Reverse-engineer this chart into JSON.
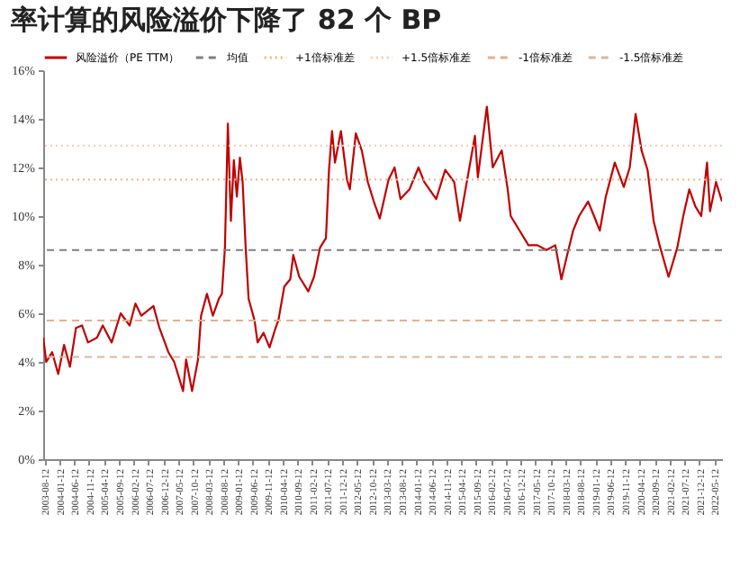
{
  "chart_data": {
    "type": "line",
    "title": "率计算的风险溢价下降了 82 个 BP",
    "x": [
      "2003-08",
      "2003-09",
      "2003-11",
      "2004-01",
      "2004-03",
      "2004-05",
      "2004-07",
      "2004-09",
      "2004-11",
      "2005-02",
      "2005-04",
      "2005-07",
      "2005-10",
      "2006-01",
      "2006-03",
      "2006-05",
      "2006-09",
      "2006-11",
      "2007-02",
      "2007-04",
      "2007-07",
      "2007-08",
      "2007-10",
      "2007-12",
      "2008-01",
      "2008-03",
      "2008-05",
      "2008-07",
      "2008-08",
      "2008-09",
      "2008-10",
      "2008-11",
      "2008-12",
      "2009-01",
      "2009-02",
      "2009-03",
      "2009-04",
      "2009-05",
      "2009-07",
      "2009-08",
      "2009-10",
      "2009-12",
      "2010-02",
      "2010-03",
      "2010-05",
      "2010-07",
      "2010-08",
      "2010-10",
      "2011-01",
      "2011-03",
      "2011-05",
      "2011-07",
      "2011-08",
      "2011-09",
      "2011-10",
      "2011-12",
      "2012-02",
      "2012-03",
      "2012-05",
      "2012-07",
      "2012-09",
      "2012-11",
      "2013-01",
      "2013-04",
      "2013-06",
      "2013-08",
      "2013-11",
      "2014-02",
      "2014-04",
      "2014-08",
      "2014-11",
      "2015-02",
      "2015-04",
      "2015-06",
      "2015-09",
      "2015-10",
      "2016-01",
      "2016-03",
      "2016-06",
      "2016-08",
      "2016-09",
      "2016-12",
      "2017-03",
      "2017-06",
      "2017-09",
      "2017-12",
      "2018-02",
      "2018-04",
      "2018-06",
      "2018-08",
      "2018-11",
      "2019-01",
      "2019-03",
      "2019-05",
      "2019-08",
      "2019-11",
      "2020-01",
      "2020-03",
      "2020-05",
      "2020-07",
      "2020-09",
      "2020-11",
      "2021-02",
      "2021-05",
      "2021-07",
      "2021-09",
      "2021-11",
      "2022-01",
      "2022-03",
      "2022-04",
      "2022-06",
      "2022-08"
    ],
    "series": [
      {
        "name": "风险溢价（PE TTM）",
        "color": "#c00000",
        "line_style": "solid",
        "values": [
          5.0,
          4.0,
          4.4,
          3.5,
          4.7,
          3.8,
          5.4,
          5.5,
          4.8,
          5.0,
          5.5,
          4.8,
          6.0,
          5.5,
          6.4,
          5.9,
          6.3,
          5.4,
          4.4,
          4.0,
          2.8,
          4.1,
          2.8,
          4.1,
          5.9,
          6.8,
          5.9,
          6.6,
          6.8,
          8.7,
          13.8,
          9.8,
          12.3,
          10.8,
          12.4,
          11.4,
          8.7,
          6.6,
          5.7,
          4.8,
          5.2,
          4.6,
          5.4,
          5.7,
          7.1,
          7.4,
          8.4,
          7.5,
          6.9,
          7.5,
          8.7,
          9.1,
          11.9,
          13.5,
          12.2,
          13.5,
          11.5,
          11.1,
          13.4,
          12.7,
          11.4,
          10.6,
          9.9,
          11.5,
          12.0,
          10.7,
          11.1,
          12.0,
          11.4,
          10.7,
          11.9,
          11.4,
          9.8,
          11.2,
          13.3,
          11.6,
          14.5,
          12.0,
          12.7,
          11.1,
          10.0,
          9.4,
          8.8,
          8.8,
          8.6,
          8.8,
          7.4,
          8.4,
          9.4,
          10.0,
          10.6,
          10.0,
          9.4,
          10.8,
          12.2,
          11.2,
          12.0,
          14.2,
          12.7,
          11.9,
          9.8,
          8.8,
          7.5,
          8.7,
          10.0,
          11.1,
          10.4,
          10.0,
          12.2,
          10.2,
          11.4,
          10.6
        ]
      }
    ],
    "ref_lines": [
      {
        "axis": "y",
        "value": 8.6,
        "label": "均值",
        "color": "#808080",
        "line_style": "dashed"
      },
      {
        "axis": "y",
        "value": 11.5,
        "label": "+1倍标准差",
        "color": "#f4b183",
        "line_style": "dotted"
      },
      {
        "axis": "y",
        "value": 12.9,
        "label": "+1.5倍标准差",
        "color": "#f8cbad",
        "line_style": "dotted"
      },
      {
        "axis": "y",
        "value": 5.7,
        "label": "-1倍标准差",
        "color": "#e2b08e",
        "line_style": "dashed"
      },
      {
        "axis": "y",
        "value": 4.2,
        "label": "-1.5倍标准差",
        "color": "#d9b89f",
        "line_style": "dashed"
      }
    ],
    "xlim": [
      "2003-08",
      "2022-08"
    ],
    "xticks": [
      "2003-08-12",
      "2004-01-12",
      "2004-06-12",
      "2004-11-12",
      "2005-04-12",
      "2005-09-12",
      "2006-02-12",
      "2006-07-12",
      "2006-12-12",
      "2007-05-12",
      "2007-10-12",
      "2008-03-12",
      "2008-08-12",
      "2009-01-12",
      "2009-06-12",
      "2009-11-12",
      "2010-04-12",
      "2010-09-12",
      "2011-02-12",
      "2011-07-12",
      "2011-12-12",
      "2012-05-12",
      "2012-10-12",
      "2013-03-12",
      "2013-08-12",
      "2014-01-12",
      "2014-06-12",
      "2014-11-12",
      "2015-04-12",
      "2015-09-12",
      "2016-02-12",
      "2016-07-12",
      "2016-12-12",
      "2017-05-12",
      "2017-10-12",
      "2018-03-12",
      "2018-08-12",
      "2019-01-12",
      "2019-06-12",
      "2019-11-12",
      "2020-04-12",
      "2020-09-12",
      "2021-02-12",
      "2021-07-12",
      "2021-12-12",
      "2022-05-12"
    ],
    "ylim": [
      0,
      16
    ],
    "yticks": [
      {
        "value": 0,
        "label": "0%"
      },
      {
        "value": 2,
        "label": "2%"
      },
      {
        "value": 4,
        "label": "4%"
      },
      {
        "value": 6,
        "label": "6%"
      },
      {
        "value": 8,
        "label": "8%"
      },
      {
        "value": 10,
        "label": "10%"
      },
      {
        "value": 12,
        "label": "12%"
      },
      {
        "value": 14,
        "label": "14%"
      },
      {
        "value": 16,
        "label": "16%"
      }
    ],
    "grid": false,
    "legend": "top"
  }
}
